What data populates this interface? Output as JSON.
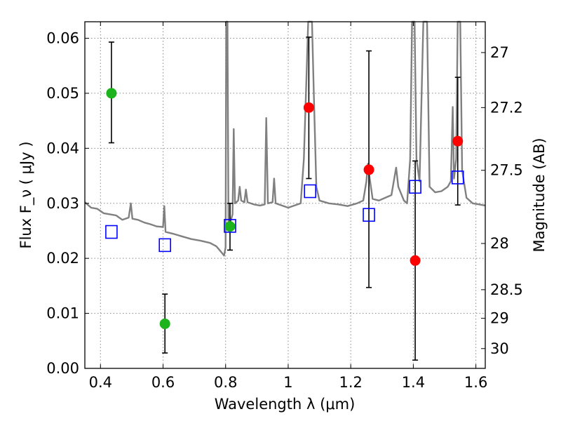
{
  "chart_data": {
    "type": "scatter",
    "xlabel": "Wavelength  λ (μm)",
    "ylabel": "Flux  F_ν  ( μJy )",
    "y2label": "Magnitude (AB)",
    "xlim": [
      0.35,
      1.63
    ],
    "ylim": [
      0.0,
      0.063
    ],
    "grid": true,
    "x_ticks": [
      0.4,
      0.6,
      0.8,
      1.0,
      1.2,
      1.4,
      1.6
    ],
    "x_tick_labels": [
      "0.4",
      "0.6",
      "0.8",
      "1",
      "1.2",
      "1.4",
      "1.6"
    ],
    "y_ticks": [
      0.0,
      0.01,
      0.02,
      0.03,
      0.04,
      0.05,
      0.06
    ],
    "y_tick_labels": [
      "0.00",
      "0.01",
      "0.02",
      "0.03",
      "0.04",
      "0.05",
      "0.06"
    ],
    "y2_ticks": [
      {
        "label": "27",
        "flux": 0.0574
      },
      {
        "label": "27.2",
        "flux": 0.0474
      },
      {
        "label": "27.5",
        "flux": 0.036
      },
      {
        "label": "28",
        "flux": 0.0227
      },
      {
        "label": "28.5",
        "flux": 0.0143
      },
      {
        "label": "29",
        "flux": 0.0091
      },
      {
        "label": "30",
        "flux": 0.0036
      }
    ],
    "colors": {
      "green": "#1db31d",
      "red": "#ff0000",
      "blue": "#0000ff",
      "spectrum": "#808080",
      "grid": "#8a8a8a"
    },
    "green_points": [
      {
        "x": 0.435,
        "y": 0.05,
        "err_low": 0.041,
        "err_high": 0.0593
      },
      {
        "x": 0.606,
        "y": 0.0081,
        "err_low": 0.0028,
        "err_high": 0.0135
      },
      {
        "x": 0.814,
        "y": 0.0258,
        "err_low": 0.0215,
        "err_high": 0.03
      }
    ],
    "red_points": [
      {
        "x": 1.066,
        "y": 0.0474,
        "err_low": 0.0345,
        "err_high": 0.0602
      },
      {
        "x": 1.258,
        "y": 0.0361,
        "err_low": 0.0147,
        "err_high": 0.0577
      },
      {
        "x": 1.406,
        "y": 0.0196,
        "err_low": 0.0015,
        "err_high": 0.0377
      },
      {
        "x": 1.542,
        "y": 0.0413,
        "err_low": 0.0297,
        "err_high": 0.0529
      }
    ],
    "model_points": [
      {
        "x": 0.435,
        "y": 0.0248
      },
      {
        "x": 0.606,
        "y": 0.0224
      },
      {
        "x": 0.814,
        "y": 0.0259
      },
      {
        "x": 1.07,
        "y": 0.0322
      },
      {
        "x": 1.258,
        "y": 0.0279
      },
      {
        "x": 1.406,
        "y": 0.033
      },
      {
        "x": 1.542,
        "y": 0.0347
      }
    ],
    "spectrum": [
      [
        0.35,
        0.0302
      ],
      [
        0.37,
        0.0292
      ],
      [
        0.39,
        0.029
      ],
      [
        0.41,
        0.0282
      ],
      [
        0.43,
        0.028
      ],
      [
        0.45,
        0.0278
      ],
      [
        0.47,
        0.027
      ],
      [
        0.49,
        0.0274
      ],
      [
        0.497,
        0.03
      ],
      [
        0.502,
        0.0272
      ],
      [
        0.52,
        0.027
      ],
      [
        0.54,
        0.0265
      ],
      [
        0.56,
        0.0262
      ],
      [
        0.58,
        0.0258
      ],
      [
        0.6,
        0.0257
      ],
      [
        0.604,
        0.0295
      ],
      [
        0.608,
        0.0248
      ],
      [
        0.63,
        0.0245
      ],
      [
        0.66,
        0.024
      ],
      [
        0.69,
        0.0235
      ],
      [
        0.72,
        0.0232
      ],
      [
        0.75,
        0.0228
      ],
      [
        0.77,
        0.0222
      ],
      [
        0.785,
        0.0212
      ],
      [
        0.795,
        0.0205
      ],
      [
        0.8,
        0.022
      ],
      [
        0.802,
        0.063
      ],
      [
        0.806,
        0.063
      ],
      [
        0.809,
        0.0262
      ],
      [
        0.815,
        0.0265
      ],
      [
        0.822,
        0.028
      ],
      [
        0.826,
        0.0435
      ],
      [
        0.83,
        0.03
      ],
      [
        0.84,
        0.0305
      ],
      [
        0.845,
        0.033
      ],
      [
        0.85,
        0.0305
      ],
      [
        0.86,
        0.0302
      ],
      [
        0.865,
        0.0325
      ],
      [
        0.87,
        0.0302
      ],
      [
        0.89,
        0.0298
      ],
      [
        0.91,
        0.0296
      ],
      [
        0.925,
        0.0298
      ],
      [
        0.93,
        0.0455
      ],
      [
        0.935,
        0.03
      ],
      [
        0.95,
        0.0302
      ],
      [
        0.955,
        0.0345
      ],
      [
        0.96,
        0.03
      ],
      [
        0.98,
        0.0296
      ],
      [
        1.0,
        0.0292
      ],
      [
        1.02,
        0.0296
      ],
      [
        1.04,
        0.03
      ],
      [
        1.05,
        0.038
      ],
      [
        1.058,
        0.052
      ],
      [
        1.064,
        0.063
      ],
      [
        1.076,
        0.063
      ],
      [
        1.082,
        0.05
      ],
      [
        1.09,
        0.033
      ],
      [
        1.1,
        0.0305
      ],
      [
        1.13,
        0.03
      ],
      [
        1.16,
        0.0298
      ],
      [
        1.19,
        0.0295
      ],
      [
        1.22,
        0.03
      ],
      [
        1.24,
        0.0305
      ],
      [
        1.25,
        0.034
      ],
      [
        1.255,
        0.0372
      ],
      [
        1.262,
        0.034
      ],
      [
        1.27,
        0.0308
      ],
      [
        1.29,
        0.0305
      ],
      [
        1.31,
        0.031
      ],
      [
        1.33,
        0.0315
      ],
      [
        1.345,
        0.0365
      ],
      [
        1.352,
        0.033
      ],
      [
        1.37,
        0.0305
      ],
      [
        1.38,
        0.03
      ],
      [
        1.39,
        0.038
      ],
      [
        1.396,
        0.063
      ],
      [
        1.404,
        0.063
      ],
      [
        1.41,
        0.038
      ],
      [
        1.42,
        0.034
      ],
      [
        1.432,
        0.063
      ],
      [
        1.444,
        0.063
      ],
      [
        1.452,
        0.033
      ],
      [
        1.47,
        0.032
      ],
      [
        1.49,
        0.0322
      ],
      [
        1.51,
        0.033
      ],
      [
        1.52,
        0.034
      ],
      [
        1.526,
        0.0475
      ],
      [
        1.53,
        0.0345
      ],
      [
        1.537,
        0.038
      ],
      [
        1.542,
        0.063
      ],
      [
        1.55,
        0.063
      ],
      [
        1.556,
        0.036
      ],
      [
        1.57,
        0.031
      ],
      [
        1.59,
        0.03
      ],
      [
        1.61,
        0.0298
      ],
      [
        1.63,
        0.0296
      ]
    ]
  }
}
